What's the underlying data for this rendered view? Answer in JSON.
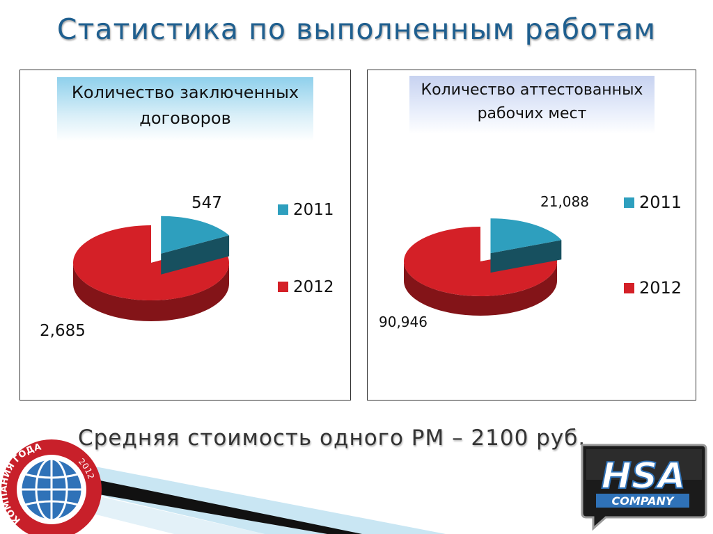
{
  "slide": {
    "title": "Статистика по выполненным работам",
    "footer": "Средняя стоимость одного РМ – 2100 руб."
  },
  "chart_data": [
    {
      "type": "pie",
      "title_lines": [
        "Количество заключенных",
        "договоров"
      ],
      "categories": [
        "2011",
        "2012"
      ],
      "values": [
        547,
        2685
      ],
      "value_labels": [
        "547",
        "2,685"
      ],
      "colors": [
        "#2e9fbe",
        "#d42027"
      ],
      "legend_position": "right"
    },
    {
      "type": "pie",
      "title_lines": [
        "Количество аттестованных",
        "рабочих мест"
      ],
      "categories": [
        "2011",
        "2012"
      ],
      "values": [
        21088,
        90946
      ],
      "value_labels": [
        "21,088",
        "90,946"
      ],
      "colors": [
        "#2e9fbe",
        "#d42027"
      ],
      "legend_position": "right"
    }
  ],
  "badge": {
    "text": "КОМПАНИЯ ГОДА",
    "year": "2012",
    "ring_color": "#c8202a",
    "globe_color": "#2f72b8"
  },
  "logo": {
    "text_main": "HSA",
    "text_sub": "COMPANY"
  },
  "icons": {
    "legend_marker": "square"
  }
}
